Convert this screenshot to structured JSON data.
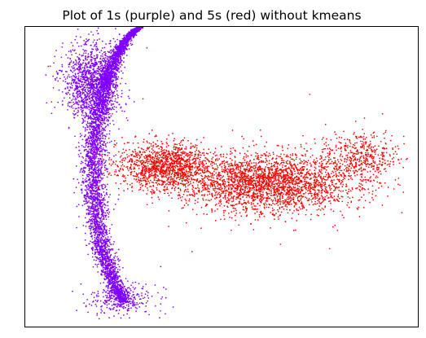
{
  "chart_data": {
    "type": "scatter",
    "title": "Plot of 1s (purple) and 5s (red) without kmeans",
    "xlabel": "",
    "ylabel": "",
    "ticks": "none",
    "grid": false,
    "legend": "none",
    "xlim": [
      -1.0,
      1.0
    ],
    "ylim": [
      -1.0,
      1.0
    ],
    "series": [
      {
        "color": "#7f00ff",
        "shape": "crescent",
        "approx_point_count": 6500,
        "clusters": [
          {
            "kind": "arc",
            "center": [
              -0.34,
              0.03
            ],
            "radius_x": 0.31,
            "radius_y": 1.0,
            "angle_range_deg": [
              92,
              240
            ],
            "spread": 0.07,
            "weight": 0.75
          },
          {
            "kind": "blob",
            "center": [
              -0.66,
              0.63
            ],
            "sd": [
              0.07,
              0.13
            ],
            "weight": 0.2
          },
          {
            "kind": "blob",
            "center": [
              -0.52,
              -0.82
            ],
            "sd": [
              0.09,
              0.05
            ],
            "weight": 0.05
          }
        ],
        "outliers": [
          [
            -0.38,
            0.86
          ],
          [
            -0.4,
            0.52
          ],
          [
            -0.52,
            0.95
          ],
          [
            -0.6,
            0.72
          ],
          [
            -0.31,
            -0.6
          ]
        ]
      },
      {
        "color": "#ff0000",
        "shape": "horizontal-band",
        "approx_point_count": 4500,
        "clusters": [
          {
            "kind": "blob",
            "center": [
              0.25,
              -0.04
            ],
            "sd": [
              0.22,
              0.1
            ],
            "weight": 0.6
          },
          {
            "kind": "blob",
            "center": [
              -0.28,
              0.07
            ],
            "sd": [
              0.12,
              0.08
            ],
            "weight": 0.3
          },
          {
            "kind": "blob",
            "center": [
              0.7,
              0.13
            ],
            "sd": [
              0.1,
              0.08
            ],
            "weight": 0.1
          }
        ],
        "outliers": [
          [
            0.82,
            0.42
          ],
          [
            0.93,
            0.22
          ],
          [
            0.45,
            0.55
          ],
          [
            0.9,
            -0.05
          ],
          [
            0.3,
            -0.45
          ],
          [
            -0.15,
            -0.5
          ],
          [
            0.55,
            -0.48
          ]
        ]
      }
    ]
  }
}
